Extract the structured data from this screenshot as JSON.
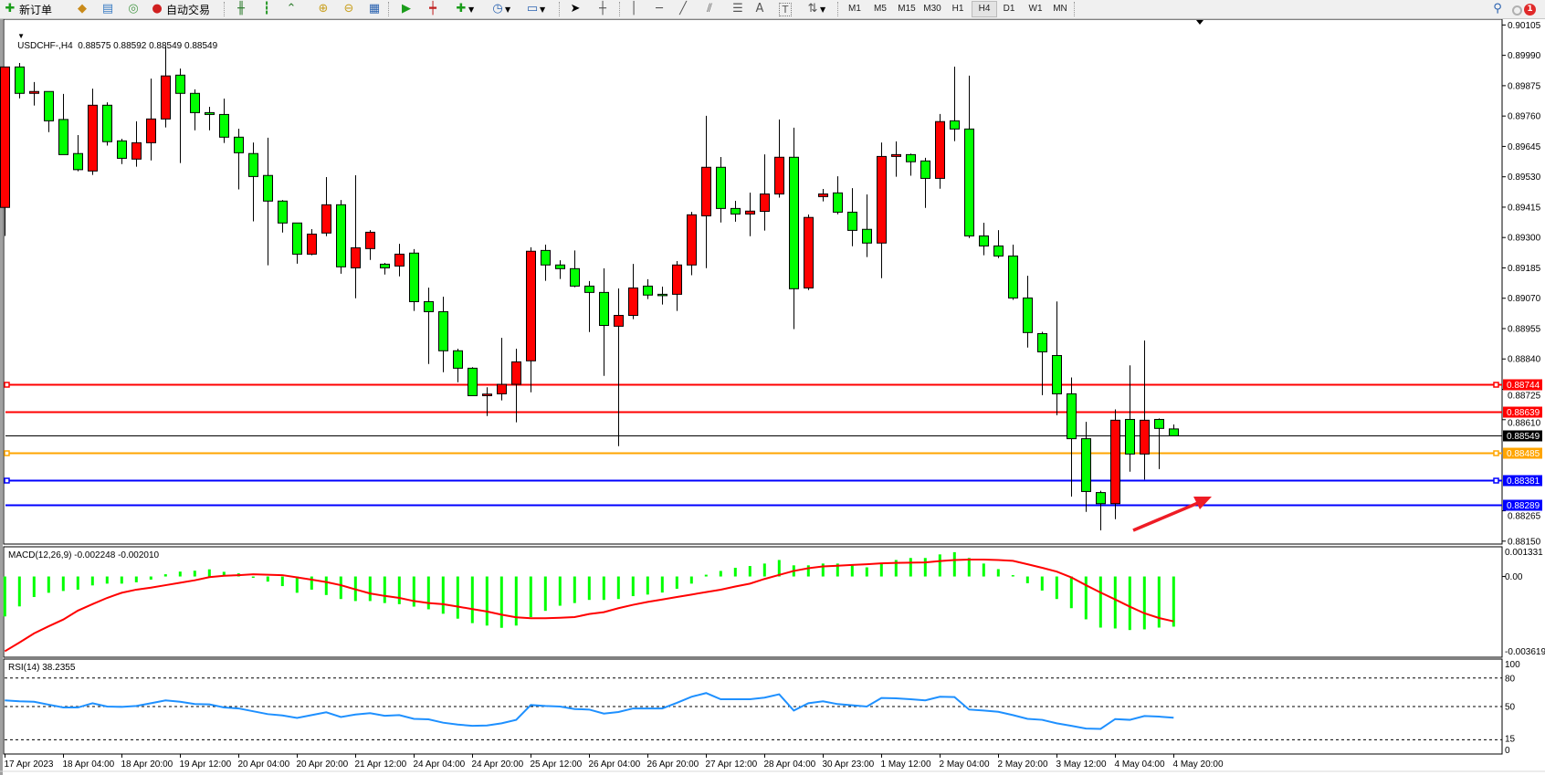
{
  "toolbar": {
    "new_order_label": "新订单",
    "autotrading_label": "自动交易",
    "icons": [
      "new-order-icon",
      "market-watch-icon",
      "data-window-icon",
      "signals-icon",
      "autotrading-icon",
      "bar-chart-icon",
      "candlestick-chart-icon",
      "line-chart-icon",
      "zoom-in-icon",
      "zoom-out-icon",
      "tile-windows-icon",
      "auto-scroll-icon",
      "chart-shift-icon",
      "indicators-icon",
      "periods-icon",
      "templates-icon",
      "cursor-icon",
      "crosshair-icon",
      "vertical-line-icon",
      "horizontal-line-icon",
      "trendline-icon",
      "equidistant-channel-icon",
      "fibonacci-icon",
      "text-icon",
      "text-label-icon",
      "arrows-icon",
      "search-icon",
      "notifications-icon"
    ],
    "timeframes": [
      "M1",
      "M5",
      "M15",
      "M30",
      "H1",
      "H4",
      "D1",
      "W1",
      "MN"
    ],
    "selected_timeframe": "H4",
    "notification_count": "1"
  },
  "chart": {
    "symbol_header": "USDCHF-,H4  0.88575 0.88592 0.88549 0.88549",
    "price_ticks": [
      "0.90105",
      "0.89990",
      "0.89875",
      "0.89760",
      "0.89645",
      "0.89530",
      "0.89415",
      "0.89300",
      "0.89185",
      "0.89070",
      "0.88955",
      "0.88840",
      "0.88725",
      "0.88610",
      "0.88265",
      "0.88150"
    ],
    "up_color": "#ff0000",
    "down_color": "#00ff00",
    "hlines": [
      {
        "price": "0.88744",
        "color": "#ff0000",
        "text_color": "#ffffff"
      },
      {
        "price": "0.88639",
        "color": "#ff0000",
        "text_color": "#ffffff"
      },
      {
        "price": "0.88549",
        "color": "#000000",
        "text_color": "#ffffff"
      },
      {
        "price": "0.88485",
        "color": "#ffa500",
        "text_color": "#ffffff"
      },
      {
        "price": "0.88381",
        "color": "#0000ff",
        "text_color": "#ffffff"
      },
      {
        "price": "0.88289",
        "color": "#0000ff",
        "text_color": "#ffffff"
      }
    ],
    "annotation_arrow_color": "#ee1c25",
    "time_labels": [
      "17 Apr 2023",
      "18 Apr 04:00",
      "18 Apr 20:00",
      "19 Apr 12:00",
      "20 Apr 04:00",
      "20 Apr 20:00",
      "21 Apr 12:00",
      "24 Apr 04:00",
      "24 Apr 20:00",
      "25 Apr 12:00",
      "26 Apr 04:00",
      "26 Apr 20:00",
      "27 Apr 12:00",
      "28 Apr 04:00",
      "30 Apr 23:00",
      "1 May 12:00",
      "2 May 04:00",
      "2 May 20:00",
      "3 May 12:00",
      "4 May 04:00",
      "4 May 20:00"
    ]
  },
  "macd": {
    "label": "MACD(12,26,9) -0.002248 -0.002010",
    "ticks": [
      "0.001331",
      "0.00",
      "-0.003619"
    ],
    "hist_color": "#00ff00",
    "signal_color": "#ff0000"
  },
  "rsi": {
    "label": "RSI(14) 38.2355",
    "ticks": [
      "100",
      "80",
      "50",
      "15",
      "0"
    ],
    "line_color": "#1e90ff"
  },
  "chart_data": [
    {
      "type": "candlestick",
      "title": "USDCHF-,H4",
      "ylim": [
        0.88139,
        0.90127
      ],
      "ohlc": [
        [
          0.89414,
          0.89946,
          0.89306,
          0.89946
        ],
        [
          0.89946,
          0.89961,
          0.89827,
          0.89846
        ],
        [
          0.89846,
          0.89889,
          0.898,
          0.89853
        ],
        [
          0.89853,
          0.89853,
          0.89699,
          0.89742
        ],
        [
          0.89747,
          0.89844,
          0.89614,
          0.89614
        ],
        [
          0.89618,
          0.89688,
          0.89551,
          0.89557
        ],
        [
          0.89552,
          0.89864,
          0.89537,
          0.89801
        ],
        [
          0.89801,
          0.89812,
          0.89648,
          0.89663
        ],
        [
          0.89666,
          0.89674,
          0.89578,
          0.896
        ],
        [
          0.89597,
          0.8974,
          0.89568,
          0.89659
        ],
        [
          0.89659,
          0.89902,
          0.89592,
          0.89749
        ],
        [
          0.89749,
          0.90027,
          0.89717,
          0.89912
        ],
        [
          0.89915,
          0.8994,
          0.89582,
          0.89846
        ],
        [
          0.89846,
          0.89861,
          0.89706,
          0.89773
        ],
        [
          0.89773,
          0.89795,
          0.89706,
          0.89766
        ],
        [
          0.89766,
          0.89826,
          0.89658,
          0.8968
        ],
        [
          0.8968,
          0.89712,
          0.89482,
          0.89621
        ],
        [
          0.89618,
          0.8966,
          0.89361,
          0.89531
        ],
        [
          0.89535,
          0.89678,
          0.89195,
          0.89438
        ],
        [
          0.89438,
          0.89442,
          0.89319,
          0.89355
        ],
        [
          0.89355,
          0.89355,
          0.89201,
          0.89237
        ],
        [
          0.89237,
          0.89332,
          0.89233,
          0.89313
        ],
        [
          0.89317,
          0.89529,
          0.89305,
          0.89424
        ],
        [
          0.89424,
          0.89442,
          0.89163,
          0.89189
        ],
        [
          0.89185,
          0.89536,
          0.8907,
          0.89261
        ],
        [
          0.89258,
          0.89328,
          0.89215,
          0.8932
        ],
        [
          0.89199,
          0.89204,
          0.8916,
          0.89185
        ],
        [
          0.89192,
          0.89276,
          0.89153,
          0.89237
        ],
        [
          0.89241,
          0.89256,
          0.89022,
          0.89057
        ],
        [
          0.89057,
          0.8911,
          0.88821,
          0.89019
        ],
        [
          0.89019,
          0.89076,
          0.8879,
          0.88871
        ],
        [
          0.88871,
          0.88879,
          0.88752,
          0.88805
        ],
        [
          0.88805,
          0.88809,
          0.88701,
          0.88701
        ],
        [
          0.88701,
          0.88733,
          0.88624,
          0.88707
        ],
        [
          0.88708,
          0.8892,
          0.88683,
          0.88744
        ],
        [
          0.88744,
          0.88879,
          0.886,
          0.88829
        ],
        [
          0.88833,
          0.89263,
          0.88714,
          0.89248
        ],
        [
          0.89251,
          0.89273,
          0.89136,
          0.89196
        ],
        [
          0.89196,
          0.89214,
          0.89143,
          0.89182
        ],
        [
          0.89182,
          0.89251,
          0.89112,
          0.89116
        ],
        [
          0.89116,
          0.89135,
          0.88942,
          0.89092
        ],
        [
          0.89092,
          0.89183,
          0.88776,
          0.88967
        ],
        [
          0.88964,
          0.89107,
          0.8851,
          0.89005
        ],
        [
          0.89005,
          0.892,
          0.88991,
          0.89109
        ],
        [
          0.89116,
          0.89142,
          0.89067,
          0.89082
        ],
        [
          0.89085,
          0.89114,
          0.89046,
          0.89082
        ],
        [
          0.89085,
          0.89211,
          0.89022,
          0.89196
        ],
        [
          0.89196,
          0.89397,
          0.89157,
          0.89386
        ],
        [
          0.89382,
          0.89761,
          0.89184,
          0.89566
        ],
        [
          0.89566,
          0.89605,
          0.89357,
          0.8941
        ],
        [
          0.8941,
          0.89439,
          0.8936,
          0.89389
        ],
        [
          0.89389,
          0.8947,
          0.89305,
          0.894
        ],
        [
          0.89399,
          0.89615,
          0.89326,
          0.89465
        ],
        [
          0.89465,
          0.89747,
          0.89451,
          0.89604
        ],
        [
          0.89604,
          0.89716,
          0.88953,
          0.89106
        ],
        [
          0.89109,
          0.89387,
          0.89101,
          0.89376
        ],
        [
          0.89455,
          0.89484,
          0.89437,
          0.89465
        ],
        [
          0.89469,
          0.89532,
          0.89388,
          0.89396
        ],
        [
          0.89396,
          0.89487,
          0.89267,
          0.89327
        ],
        [
          0.89331,
          0.89463,
          0.89226,
          0.89279
        ],
        [
          0.89279,
          0.8966,
          0.89146,
          0.89607
        ],
        [
          0.89607,
          0.89664,
          0.8953,
          0.89614
        ],
        [
          0.89614,
          0.89618,
          0.89534,
          0.89587
        ],
        [
          0.8959,
          0.89602,
          0.89412,
          0.89524
        ],
        [
          0.89524,
          0.89768,
          0.89485,
          0.89739
        ],
        [
          0.89742,
          0.89947,
          0.89665,
          0.89711
        ],
        [
          0.89711,
          0.89913,
          0.89298,
          0.89306
        ],
        [
          0.89306,
          0.89356,
          0.89233,
          0.89268
        ],
        [
          0.89268,
          0.89328,
          0.89222,
          0.8923
        ],
        [
          0.8923,
          0.89273,
          0.89064,
          0.89071
        ],
        [
          0.89071,
          0.89155,
          0.88883,
          0.8894
        ],
        [
          0.88936,
          0.88943,
          0.88703,
          0.88867
        ],
        [
          0.88853,
          0.89058,
          0.88627,
          0.88708
        ],
        [
          0.88708,
          0.8877,
          0.88319,
          0.88538
        ],
        [
          0.88538,
          0.88602,
          0.88261,
          0.88338
        ],
        [
          0.88334,
          0.88341,
          0.88191,
          0.88292
        ],
        [
          0.88292,
          0.88649,
          0.88233,
          0.88608
        ],
        [
          0.88611,
          0.88816,
          0.88413,
          0.8848
        ],
        [
          0.8848,
          0.8891,
          0.88383,
          0.88608
        ],
        [
          0.88611,
          0.88615,
          0.88423,
          0.88577
        ],
        [
          0.88575,
          0.88592,
          0.88549,
          0.88549
        ]
      ]
    },
    {
      "type": "bar+line",
      "title": "MACD(12,26,9)",
      "ylim": [
        -0.003619,
        0.001331
      ],
      "series": [
        {
          "name": "MACD",
          "type": "bar",
          "values": [
            -0.00179,
            -0.00134,
            -0.00092,
            -0.00073,
            -0.00065,
            -0.00059,
            -0.0004,
            -0.00032,
            -0.00032,
            -0.00026,
            -0.00014,
            0.0001,
            0.00022,
            0.00026,
            0.00032,
            0.00021,
            0.00014,
            -6e-05,
            -0.00023,
            -0.00043,
            -0.00073,
            -0.00059,
            -0.00083,
            -0.00101,
            -0.0011,
            -0.0011,
            -0.00119,
            -0.00124,
            -0.00135,
            -0.00147,
            -0.00167,
            -0.00189,
            -0.00209,
            -0.0022,
            -0.0023,
            -0.0022,
            -0.00182,
            -0.00154,
            -0.00131,
            -0.00119,
            -0.00105,
            -0.00105,
            -0.00101,
            -0.00088,
            -0.00081,
            -0.00072,
            -0.00055,
            -0.00032,
            8e-05,
            0.00025,
            0.00039,
            0.00047,
            0.00058,
            0.00074,
            0.0005,
            0.0005,
            0.00058,
            0.00058,
            0.00055,
            0.00041,
            0.00058,
            0.00074,
            0.00083,
            0.00083,
            0.00099,
            0.00109,
            0.00083,
            0.00058,
            0.00033,
            6e-05,
            -0.0003,
            -0.00063,
            -0.00101,
            -0.00142,
            -0.00192,
            -0.00229,
            -0.00233,
            -0.0024,
            -0.00237,
            -0.00229,
            -0.002248
          ]
        },
        {
          "name": "Signal",
          "type": "line",
          "values": [
            -0.00335,
            -0.00296,
            -0.00255,
            -0.00223,
            -0.00193,
            -0.00153,
            -0.00124,
            -0.00096,
            -0.00073,
            -0.00059,
            -0.0005,
            -0.00039,
            -0.00028,
            -0.00017,
            -3e-05,
            3e-05,
            6e-05,
            0.0001,
            8e-05,
            6e-05,
            -4e-05,
            -0.00014,
            -0.00025,
            -0.00039,
            -0.00058,
            -0.00076,
            -0.00087,
            -0.00096,
            -0.0011,
            -0.00119,
            -0.00124,
            -0.00135,
            -0.00146,
            -0.00157,
            -0.00171,
            -0.00183,
            -0.00187,
            -0.00187,
            -0.00185,
            -0.00182,
            -0.00168,
            -0.0016,
            -0.00142,
            -0.00127,
            -0.00114,
            -0.00103,
            -0.00092,
            -0.00081,
            -0.0007,
            -0.00059,
            -0.00045,
            -0.00032,
            -0.00011,
            7e-05,
            0.00025,
            0.00037,
            0.00045,
            0.00048,
            0.00052,
            0.00055,
            0.00059,
            0.00061,
            0.00062,
            0.00063,
            0.00069,
            0.00074,
            0.00076,
            0.00076,
            0.00074,
            0.0007,
            0.00055,
            0.00039,
            0.00022,
            -4e-05,
            -0.00039,
            -0.00072,
            -0.00103,
            -0.00135,
            -0.00165,
            -0.00186,
            -0.00201
          ]
        }
      ]
    },
    {
      "type": "line",
      "title": "RSI(14)",
      "ylim": [
        0,
        100
      ],
      "levels": [
        80,
        50,
        15
      ],
      "values": [
        56.5,
        55.5,
        55,
        52,
        49,
        49,
        53.5,
        50,
        49.7,
        50.6,
        53.5,
        56.5,
        55,
        52.6,
        52.3,
        49,
        48,
        45,
        42,
        40.6,
        38,
        41,
        44,
        39,
        41.6,
        43,
        40.3,
        41,
        37,
        36.5,
        33,
        31,
        29.7,
        30,
        32.3,
        36,
        51.6,
        50.6,
        50,
        47.4,
        46.8,
        42.6,
        44.2,
        48,
        48,
        48,
        53.9,
        60.3,
        64.2,
        57.7,
        57.7,
        57.7,
        59.4,
        62.9,
        45.8,
        53.5,
        55.5,
        52.6,
        51.3,
        50,
        59,
        58.7,
        57.7,
        56.5,
        60.3,
        60,
        46.8,
        45.8,
        44.5,
        41,
        37,
        36,
        32.3,
        29.7,
        26.8,
        26.5,
        36.8,
        36,
        40,
        39.4,
        38.2355
      ]
    }
  ]
}
